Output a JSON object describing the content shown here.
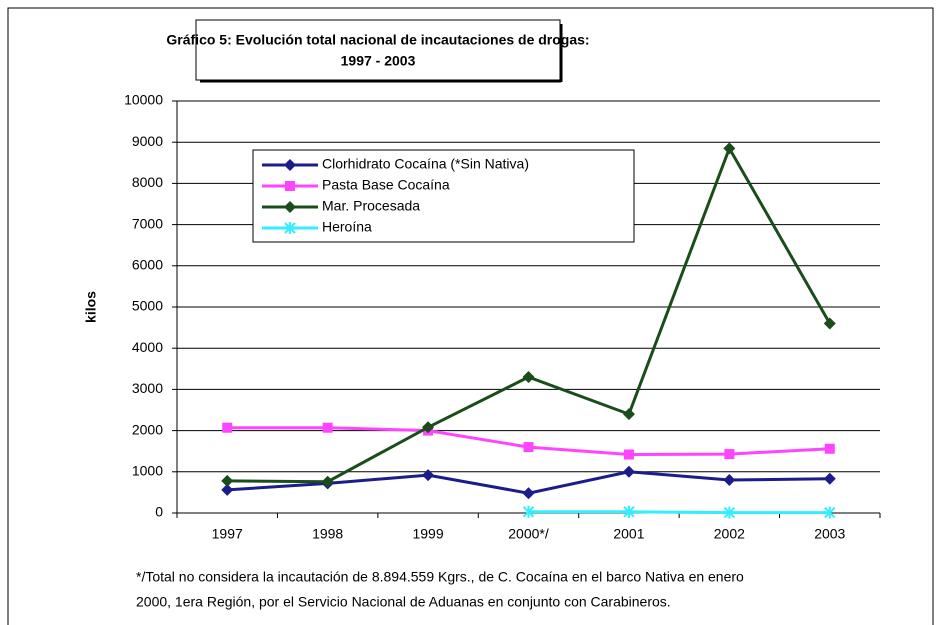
{
  "chart_data": {
    "type": "line",
    "title": "Gráfico 5: Evolución total nacional de incautaciones de drogas:",
    "subtitle": "1997 - 2003",
    "y_label": "kilos",
    "categories": [
      "1997",
      "1998",
      "1999",
      "2000*/",
      "2001",
      "2002",
      "2003"
    ],
    "series": [
      {
        "name": "Clorhidrato Cocaína (*Sin Nativa)",
        "color": "#1c1c8c",
        "marker": "diamond",
        "values": [
          560,
          720,
          920,
          480,
          1000,
          800,
          830
        ]
      },
      {
        "name": "Pasta Base Cocaína",
        "color": "#ff44ff",
        "marker": "square",
        "values": [
          2070,
          2070,
          2000,
          1600,
          1420,
          1430,
          1560
        ]
      },
      {
        "name": "Mar. Procesada",
        "color": "#1a4d1a",
        "marker": "diamond",
        "values": [
          780,
          760,
          2080,
          3300,
          2400,
          8850,
          4600
        ]
      },
      {
        "name": "Heroína",
        "color": "#33eeff",
        "marker": "star",
        "values": [
          null,
          null,
          null,
          30,
          30,
          10,
          10
        ]
      }
    ],
    "ylim": [
      0,
      10000
    ],
    "yticks": [
      0,
      1000,
      2000,
      3000,
      4000,
      5000,
      6000,
      7000,
      8000,
      9000,
      10000
    ],
    "grid": true,
    "footnote": [
      "*/Total no considera la incautación de 8.894.559 Kgrs., de C. Cocaína en el barco Nativa en enero",
      "2000, 1era Región, por el Servicio Nacional de Aduanas en conjunto con Carabineros."
    ]
  }
}
